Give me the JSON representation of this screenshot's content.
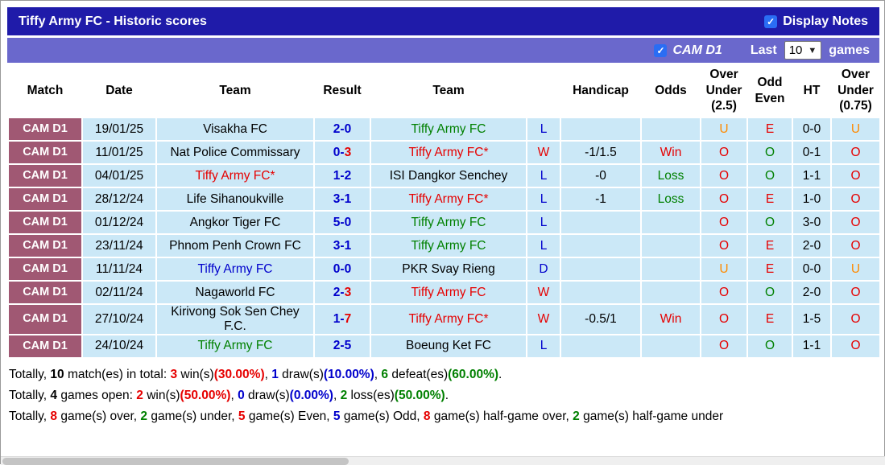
{
  "title_bar": {
    "title": "Tiffy Army FC - Historic scores",
    "display_notes_label": "Display Notes"
  },
  "filter_bar": {
    "league_label": "CAM D1",
    "last_label": "Last",
    "games_count": "10",
    "games_label": "games"
  },
  "colors": {
    "titlebar_bg": "#1f1ba9",
    "filterbar_bg": "#6a68cc",
    "badge_bg": "#a05873",
    "row_bg": "#cbe8f7",
    "checkbox_blue": "#2a6df4"
  },
  "palette": {
    "black": "#000000",
    "blue": "#0000cc",
    "red": "#e60000",
    "green": "#008000",
    "orange": "#ff8a00",
    "white": "#ffffff"
  },
  "table": {
    "headers": {
      "match": "Match",
      "date": "Date",
      "team1": "Team",
      "result": "Result",
      "team2": "Team",
      "outcome": "",
      "handicap": "Handicap",
      "odds": "Odds",
      "ou25": "Over Under (2.5)",
      "oe": "Odd Even",
      "ht": "HT",
      "ou075": "Over Under (0.75)"
    },
    "rows": [
      {
        "match": "CAM D1",
        "date": "19/01/25",
        "home": {
          "name": "Visakha FC",
          "color": "black"
        },
        "result": {
          "home": "2",
          "away": "0",
          "home_color": "blue",
          "away_color": "blue"
        },
        "away": {
          "name": "Tiffy Army FC",
          "color": "green"
        },
        "outcome": {
          "text": "L",
          "color": "blue"
        },
        "handicap": "",
        "odds": {
          "text": "",
          "color": "black"
        },
        "ou25": {
          "text": "U",
          "color": "orange"
        },
        "oe": {
          "text": "E",
          "color": "red"
        },
        "ht": "0-0",
        "ou075": {
          "text": "U",
          "color": "orange"
        }
      },
      {
        "match": "CAM D1",
        "date": "11/01/25",
        "home": {
          "name": "Nat Police Commissary",
          "color": "black"
        },
        "result": {
          "home": "0",
          "away": "3",
          "home_color": "blue",
          "away_color": "red"
        },
        "away": {
          "name": "Tiffy Army FC*",
          "color": "red"
        },
        "outcome": {
          "text": "W",
          "color": "red"
        },
        "handicap": "-1/1.5",
        "odds": {
          "text": "Win",
          "color": "red"
        },
        "ou25": {
          "text": "O",
          "color": "red"
        },
        "oe": {
          "text": "O",
          "color": "green"
        },
        "ht": "0-1",
        "ou075": {
          "text": "O",
          "color": "red"
        }
      },
      {
        "match": "CAM D1",
        "date": "04/01/25",
        "home": {
          "name": "Tiffy Army FC*",
          "color": "red"
        },
        "result": {
          "home": "1",
          "away": "2",
          "home_color": "blue",
          "away_color": "blue"
        },
        "away": {
          "name": "ISI Dangkor Senchey",
          "color": "black"
        },
        "outcome": {
          "text": "L",
          "color": "blue"
        },
        "handicap": "-0",
        "odds": {
          "text": "Loss",
          "color": "green"
        },
        "ou25": {
          "text": "O",
          "color": "red"
        },
        "oe": {
          "text": "O",
          "color": "green"
        },
        "ht": "1-1",
        "ou075": {
          "text": "O",
          "color": "red"
        }
      },
      {
        "match": "CAM D1",
        "date": "28/12/24",
        "home": {
          "name": "Life Sihanoukville",
          "color": "black"
        },
        "result": {
          "home": "3",
          "away": "1",
          "home_color": "blue",
          "away_color": "blue"
        },
        "away": {
          "name": "Tiffy Army FC*",
          "color": "red"
        },
        "outcome": {
          "text": "L",
          "color": "blue"
        },
        "handicap": "-1",
        "odds": {
          "text": "Loss",
          "color": "green"
        },
        "ou25": {
          "text": "O",
          "color": "red"
        },
        "oe": {
          "text": "E",
          "color": "red"
        },
        "ht": "1-0",
        "ou075": {
          "text": "O",
          "color": "red"
        }
      },
      {
        "match": "CAM D1",
        "date": "01/12/24",
        "home": {
          "name": "Angkor Tiger FC",
          "color": "black"
        },
        "result": {
          "home": "5",
          "away": "0",
          "home_color": "blue",
          "away_color": "blue"
        },
        "away": {
          "name": "Tiffy Army FC",
          "color": "green"
        },
        "outcome": {
          "text": "L",
          "color": "blue"
        },
        "handicap": "",
        "odds": {
          "text": "",
          "color": "black"
        },
        "ou25": {
          "text": "O",
          "color": "red"
        },
        "oe": {
          "text": "O",
          "color": "green"
        },
        "ht": "3-0",
        "ou075": {
          "text": "O",
          "color": "red"
        }
      },
      {
        "match": "CAM D1",
        "date": "23/11/24",
        "home": {
          "name": "Phnom Penh Crown FC",
          "color": "black"
        },
        "result": {
          "home": "3",
          "away": "1",
          "home_color": "blue",
          "away_color": "blue"
        },
        "away": {
          "name": "Tiffy Army FC",
          "color": "green"
        },
        "outcome": {
          "text": "L",
          "color": "blue"
        },
        "handicap": "",
        "odds": {
          "text": "",
          "color": "black"
        },
        "ou25": {
          "text": "O",
          "color": "red"
        },
        "oe": {
          "text": "E",
          "color": "red"
        },
        "ht": "2-0",
        "ou075": {
          "text": "O",
          "color": "red"
        }
      },
      {
        "match": "CAM D1",
        "date": "11/11/24",
        "home": {
          "name": "Tiffy Army FC",
          "color": "blue"
        },
        "result": {
          "home": "0",
          "away": "0",
          "home_color": "blue",
          "away_color": "blue"
        },
        "away": {
          "name": "PKR Svay Rieng",
          "color": "black"
        },
        "outcome": {
          "text": "D",
          "color": "blue"
        },
        "handicap": "",
        "odds": {
          "text": "",
          "color": "black"
        },
        "ou25": {
          "text": "U",
          "color": "orange"
        },
        "oe": {
          "text": "E",
          "color": "red"
        },
        "ht": "0-0",
        "ou075": {
          "text": "U",
          "color": "orange"
        }
      },
      {
        "match": "CAM D1",
        "date": "02/11/24",
        "home": {
          "name": "Nagaworld FC",
          "color": "black"
        },
        "result": {
          "home": "2",
          "away": "3",
          "home_color": "blue",
          "away_color": "red"
        },
        "away": {
          "name": "Tiffy Army FC",
          "color": "red"
        },
        "outcome": {
          "text": "W",
          "color": "red"
        },
        "handicap": "",
        "odds": {
          "text": "",
          "color": "black"
        },
        "ou25": {
          "text": "O",
          "color": "red"
        },
        "oe": {
          "text": "O",
          "color": "green"
        },
        "ht": "2-0",
        "ou075": {
          "text": "O",
          "color": "red"
        }
      },
      {
        "match": "CAM D1",
        "date": "27/10/24",
        "home": {
          "name": "Kirivong Sok Sen Chey F.C.",
          "color": "black"
        },
        "result": {
          "home": "1",
          "away": "7",
          "home_color": "blue",
          "away_color": "red"
        },
        "away": {
          "name": "Tiffy Army FC*",
          "color": "red"
        },
        "outcome": {
          "text": "W",
          "color": "red"
        },
        "handicap": "-0.5/1",
        "odds": {
          "text": "Win",
          "color": "red"
        },
        "ou25": {
          "text": "O",
          "color": "red"
        },
        "oe": {
          "text": "E",
          "color": "red"
        },
        "ht": "1-5",
        "ou075": {
          "text": "O",
          "color": "red"
        }
      },
      {
        "match": "CAM D1",
        "date": "24/10/24",
        "home": {
          "name": "Tiffy Army FC",
          "color": "green"
        },
        "result": {
          "home": "2",
          "away": "5",
          "home_color": "blue",
          "away_color": "blue"
        },
        "away": {
          "name": "Boeung Ket FC",
          "color": "black"
        },
        "outcome": {
          "text": "L",
          "color": "blue"
        },
        "handicap": "",
        "odds": {
          "text": "",
          "color": "black"
        },
        "ou25": {
          "text": "O",
          "color": "red"
        },
        "oe": {
          "text": "O",
          "color": "green"
        },
        "ht": "1-1",
        "ou075": {
          "text": "O",
          "color": "red"
        }
      }
    ]
  },
  "footer": {
    "lines": [
      [
        {
          "t": "Totally, "
        },
        {
          "t": "10",
          "b": true
        },
        {
          "t": " match(es) in total: "
        },
        {
          "t": "3",
          "c": "red",
          "b": true
        },
        {
          "t": " win(s)"
        },
        {
          "t": "(30.00%)",
          "c": "red",
          "b": true
        },
        {
          "t": ", "
        },
        {
          "t": "1",
          "c": "blue",
          "b": true
        },
        {
          "t": " draw(s)"
        },
        {
          "t": "(10.00%)",
          "c": "blue",
          "b": true
        },
        {
          "t": ", "
        },
        {
          "t": "6",
          "c": "green",
          "b": true
        },
        {
          "t": " defeat(es)"
        },
        {
          "t": "(60.00%)",
          "c": "green",
          "b": true
        },
        {
          "t": "."
        }
      ],
      [
        {
          "t": "Totally, "
        },
        {
          "t": "4",
          "b": true
        },
        {
          "t": " games open: "
        },
        {
          "t": "2",
          "c": "red",
          "b": true
        },
        {
          "t": " win(s)"
        },
        {
          "t": "(50.00%)",
          "c": "red",
          "b": true
        },
        {
          "t": ", "
        },
        {
          "t": "0",
          "c": "blue",
          "b": true
        },
        {
          "t": " draw(s)"
        },
        {
          "t": "(0.00%)",
          "c": "blue",
          "b": true
        },
        {
          "t": ", "
        },
        {
          "t": "2",
          "c": "green",
          "b": true
        },
        {
          "t": " loss(es)"
        },
        {
          "t": "(50.00%)",
          "c": "green",
          "b": true
        },
        {
          "t": "."
        }
      ],
      [
        {
          "t": "Totally, "
        },
        {
          "t": "8",
          "c": "red",
          "b": true
        },
        {
          "t": " game(s) over, "
        },
        {
          "t": "2",
          "c": "green",
          "b": true
        },
        {
          "t": " game(s) under, "
        },
        {
          "t": "5",
          "c": "red",
          "b": true
        },
        {
          "t": " game(s) Even, "
        },
        {
          "t": "5",
          "c": "blue",
          "b": true
        },
        {
          "t": " game(s) Odd, "
        },
        {
          "t": "8",
          "c": "red",
          "b": true
        },
        {
          "t": " game(s) half-game over, "
        },
        {
          "t": "2",
          "c": "green",
          "b": true
        },
        {
          "t": " game(s) half-game under"
        }
      ]
    ]
  }
}
